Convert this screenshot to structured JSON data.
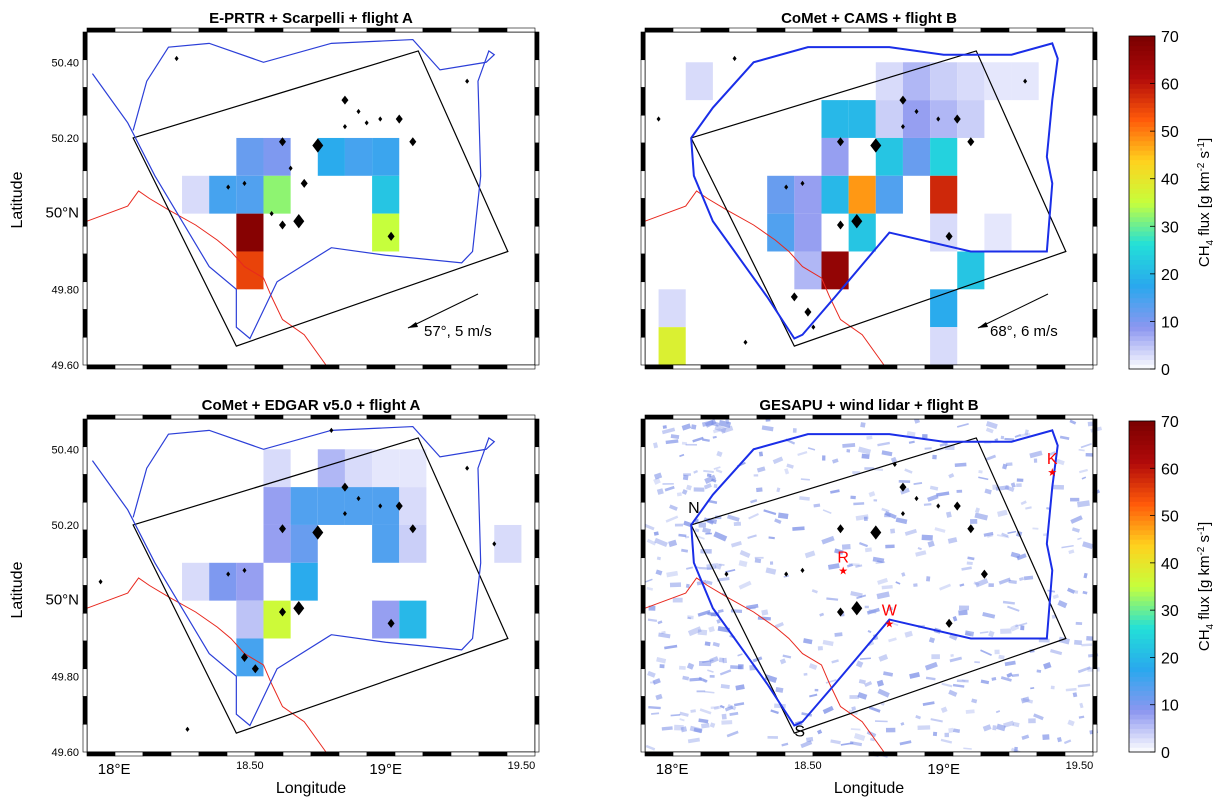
{
  "figure": {
    "colorbar": {
      "label_main": "CH",
      "label_sub": "4",
      "label_rest": " flux [g km",
      "label_sup1": "-2",
      "label_mid": " s",
      "label_sup2": "-1",
      "label_end": "]",
      "ticks": [
        "0",
        "10",
        "20",
        "30",
        "40",
        "50",
        "60",
        "70"
      ],
      "range": [
        0,
        70
      ],
      "colormap": [
        "#ffffff",
        "#8c96f0",
        "#2aa8ee",
        "#22e0d8",
        "#c6ff3c",
        "#ffd21e",
        "#ff5a0a",
        "#b10a0a",
        "#7a0000"
      ]
    }
  },
  "chart_data": [
    {
      "type": "heatmap",
      "title": "E-PRTR + Scarpelli + flight A",
      "ylabel": "Latitude",
      "xlabel": "",
      "xlim": [
        17.9,
        19.55
      ],
      "ylim": [
        49.6,
        50.48
      ],
      "yticks": [
        "49.60",
        "49.80",
        "50°N",
        "50.20",
        "50.40"
      ],
      "xticks": [],
      "wind_annotation": "57°, 5 m/s",
      "grid_cells_lon_lat_flux": [
        [
          18.5,
          50.15,
          12
        ],
        [
          18.6,
          50.15,
          10
        ],
        [
          18.8,
          50.15,
          18
        ],
        [
          18.9,
          50.15,
          15
        ],
        [
          19.0,
          50.15,
          16
        ],
        [
          18.3,
          50.05,
          3
        ],
        [
          18.4,
          50.05,
          15
        ],
        [
          18.5,
          50.05,
          14
        ],
        [
          18.6,
          50.05,
          32
        ],
        [
          19.0,
          50.05,
          22
        ],
        [
          18.5,
          49.95,
          68
        ],
        [
          19.0,
          49.95,
          35
        ],
        [
          18.5,
          49.85,
          55
        ]
      ],
      "point_sources_lon_lat_size": [
        [
          18.62,
          50.19,
          2
        ],
        [
          18.75,
          50.18,
          3
        ],
        [
          18.85,
          50.23,
          1
        ],
        [
          18.85,
          50.3,
          2
        ],
        [
          18.9,
          50.27,
          1
        ],
        [
          18.93,
          50.24,
          1
        ],
        [
          18.98,
          50.25,
          1
        ],
        [
          19.05,
          50.25,
          2
        ],
        [
          19.1,
          50.19,
          2
        ],
        [
          18.65,
          50.12,
          1
        ],
        [
          18.7,
          50.08,
          2
        ],
        [
          18.58,
          50.0,
          1
        ],
        [
          18.62,
          49.97,
          2
        ],
        [
          18.68,
          49.98,
          3
        ],
        [
          18.48,
          50.08,
          1
        ],
        [
          18.42,
          50.07,
          1
        ],
        [
          19.02,
          49.94,
          2
        ],
        [
          18.23,
          50.41,
          1
        ],
        [
          19.3,
          50.35,
          1
        ]
      ]
    },
    {
      "type": "heatmap",
      "title": "CoMet + CAMS + flight B",
      "ylabel": "",
      "xlabel": "",
      "xlim": [
        17.9,
        19.55
      ],
      "ylim": [
        49.6,
        50.48
      ],
      "yticks": [],
      "xticks": [],
      "wind_annotation": "68°, 6 m/s",
      "grid_cells_lon_lat_flux": [
        [
          18.1,
          50.35,
          3
        ],
        [
          18.8,
          50.35,
          3
        ],
        [
          18.9,
          50.35,
          6
        ],
        [
          19.0,
          50.35,
          4
        ],
        [
          19.1,
          50.35,
          3
        ],
        [
          19.2,
          50.35,
          2
        ],
        [
          19.3,
          50.35,
          2
        ],
        [
          18.6,
          50.25,
          20
        ],
        [
          18.7,
          50.25,
          20
        ],
        [
          18.8,
          50.25,
          4
        ],
        [
          18.9,
          50.25,
          8
        ],
        [
          19.0,
          50.25,
          6
        ],
        [
          19.1,
          50.25,
          4
        ],
        [
          18.6,
          50.15,
          8
        ],
        [
          18.7,
          50.15,
          0
        ],
        [
          18.8,
          50.15,
          22
        ],
        [
          18.9,
          50.15,
          12
        ],
        [
          19.0,
          50.15,
          24
        ],
        [
          18.6,
          50.05,
          20
        ],
        [
          18.7,
          50.05,
          48
        ],
        [
          18.8,
          50.05,
          14
        ],
        [
          19.0,
          50.05,
          58
        ],
        [
          19.0,
          49.95,
          3
        ],
        [
          18.4,
          50.05,
          12
        ],
        [
          18.5,
          50.05,
          8
        ],
        [
          18.4,
          49.95,
          14
        ],
        [
          18.5,
          49.95,
          8
        ],
        [
          18.7,
          49.95,
          22
        ],
        [
          18.5,
          49.85,
          6
        ],
        [
          18.6,
          49.85,
          66
        ],
        [
          19.2,
          49.95,
          2
        ],
        [
          19.1,
          49.85,
          22
        ],
        [
          19.0,
          49.75,
          18
        ],
        [
          18.0,
          49.75,
          3
        ],
        [
          19.0,
          49.65,
          3
        ],
        [
          18.0,
          49.65,
          38
        ],
        [
          18.0,
          49.55,
          3
        ],
        [
          18.6,
          49.45,
          3
        ]
      ],
      "point_sources_lon_lat_size": [
        [
          18.62,
          50.19,
          2
        ],
        [
          18.75,
          50.18,
          3
        ],
        [
          18.85,
          50.23,
          1
        ],
        [
          18.85,
          50.3,
          2
        ],
        [
          18.9,
          50.27,
          1
        ],
        [
          18.98,
          50.25,
          1
        ],
        [
          19.05,
          50.25,
          2
        ],
        [
          19.1,
          50.19,
          2
        ],
        [
          18.48,
          50.08,
          1
        ],
        [
          18.42,
          50.07,
          1
        ],
        [
          18.62,
          49.97,
          2
        ],
        [
          18.68,
          49.98,
          3
        ],
        [
          19.02,
          49.94,
          2
        ],
        [
          18.45,
          49.78,
          2
        ],
        [
          18.5,
          49.74,
          2
        ],
        [
          18.52,
          49.7,
          1
        ],
        [
          18.23,
          50.41,
          1
        ],
        [
          19.3,
          50.35,
          1
        ],
        [
          17.95,
          50.25,
          1
        ],
        [
          18.27,
          49.66,
          1
        ]
      ]
    },
    {
      "type": "heatmap",
      "title": "CoMet + EDGAR v5.0 + flight A",
      "ylabel": "Latitude",
      "xlabel": "Longitude",
      "xlim": [
        17.9,
        19.55
      ],
      "ylim": [
        49.6,
        50.48
      ],
      "yticks": [
        "49.60",
        "49.80",
        "50°N",
        "50.20",
        "50.40"
      ],
      "xticks": [
        "18°E",
        "18.50",
        "19°E",
        "19.50"
      ],
      "wind_annotation": "",
      "grid_cells_lon_lat_flux": [
        [
          18.6,
          50.35,
          3
        ],
        [
          18.8,
          50.35,
          6
        ],
        [
          18.9,
          50.35,
          3
        ],
        [
          19.0,
          50.35,
          2
        ],
        [
          19.1,
          50.35,
          2
        ],
        [
          18.6,
          50.25,
          8
        ],
        [
          18.7,
          50.25,
          14
        ],
        [
          18.8,
          50.25,
          14
        ],
        [
          18.9,
          50.25,
          14
        ],
        [
          19.0,
          50.25,
          14
        ],
        [
          19.1,
          50.25,
          3
        ],
        [
          19.45,
          50.15,
          3
        ],
        [
          18.6,
          50.15,
          8
        ],
        [
          18.7,
          50.15,
          12
        ],
        [
          19.0,
          50.15,
          14
        ],
        [
          19.1,
          50.15,
          4
        ],
        [
          18.3,
          50.05,
          3
        ],
        [
          18.4,
          50.05,
          10
        ],
        [
          18.5,
          50.05,
          8
        ],
        [
          18.7,
          50.05,
          18
        ],
        [
          18.5,
          49.95,
          5
        ],
        [
          18.6,
          49.95,
          36
        ],
        [
          19.0,
          49.95,
          8
        ],
        [
          19.1,
          49.95,
          20
        ],
        [
          18.5,
          49.85,
          15
        ]
      ],
      "point_sources_lon_lat_size": [
        [
          18.62,
          50.19,
          2
        ],
        [
          18.75,
          50.18,
          3
        ],
        [
          18.85,
          50.23,
          1
        ],
        [
          18.85,
          50.3,
          2
        ],
        [
          18.9,
          50.27,
          1
        ],
        [
          18.98,
          50.25,
          1
        ],
        [
          19.05,
          50.25,
          2
        ],
        [
          19.1,
          50.19,
          2
        ],
        [
          18.48,
          50.08,
          1
        ],
        [
          18.42,
          50.07,
          1
        ],
        [
          18.62,
          49.97,
          2
        ],
        [
          18.68,
          49.98,
          3
        ],
        [
          19.02,
          49.94,
          2
        ],
        [
          18.48,
          49.85,
          2
        ],
        [
          18.52,
          49.82,
          2
        ],
        [
          18.27,
          49.66,
          1
        ],
        [
          18.8,
          50.45,
          1
        ],
        [
          19.3,
          50.35,
          1
        ],
        [
          17.95,
          50.05,
          1
        ],
        [
          19.4,
          50.15,
          1
        ]
      ]
    },
    {
      "type": "heatmap",
      "title": "GESAPU + wind lidar + flight B",
      "ylabel": "",
      "xlabel": "Longitude",
      "xlim": [
        17.9,
        19.55
      ],
      "ylim": [
        49.6,
        50.48
      ],
      "yticks": [],
      "xticks": [
        "18°E",
        "18.50",
        "19°E",
        "19.50"
      ],
      "wind_annotation": "",
      "site_labels": [
        {
          "label": "N",
          "lon": 18.08,
          "lat": 50.21,
          "color": "#000000"
        },
        {
          "label": "S",
          "lon": 18.47,
          "lat": 49.62,
          "color": "#000000"
        },
        {
          "label": "R",
          "lon": 18.63,
          "lat": 50.08,
          "color": "#ff0000"
        },
        {
          "label": "W",
          "lon": 18.8,
          "lat": 49.94,
          "color": "#ff0000"
        },
        {
          "label": "K",
          "lon": 19.4,
          "lat": 50.34,
          "color": "#ff0000"
        }
      ],
      "point_sources_lon_lat_size": [
        [
          18.62,
          50.19,
          2
        ],
        [
          18.75,
          50.18,
          3
        ],
        [
          18.85,
          50.23,
          1
        ],
        [
          18.85,
          50.3,
          2
        ],
        [
          18.9,
          50.27,
          1
        ],
        [
          18.98,
          50.25,
          1
        ],
        [
          19.05,
          50.25,
          2
        ],
        [
          19.1,
          50.19,
          2
        ],
        [
          18.48,
          50.08,
          1
        ],
        [
          18.42,
          50.07,
          1
        ],
        [
          18.62,
          49.97,
          2
        ],
        [
          18.68,
          49.98,
          3
        ],
        [
          19.02,
          49.94,
          2
        ],
        [
          19.15,
          50.07,
          2
        ],
        [
          18.82,
          50.36,
          1
        ],
        [
          18.2,
          50.07,
          1
        ]
      ]
    }
  ]
}
